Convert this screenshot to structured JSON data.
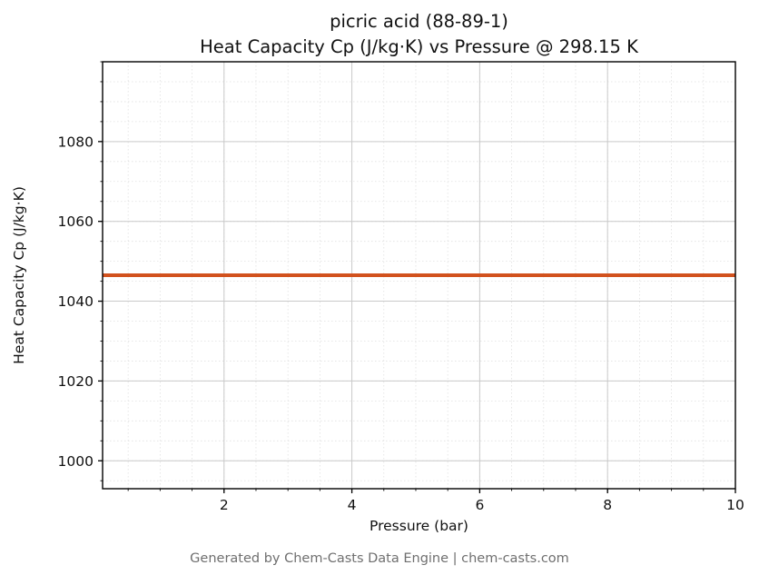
{
  "chart": {
    "title_lines": [
      "picric acid (88-89-1)",
      "Heat Capacity Cp (J/kg·K) vs Pressure @ 298.15 K"
    ],
    "footer": "Generated by Chem-Casts Data Engine | chem-casts.com"
  },
  "chart_data": {
    "type": "line",
    "title": "picric acid (88-89-1)\nHeat Capacity Cp (J/kg·K) vs Pressure @ 298.15 K",
    "xlabel": "Pressure (bar)",
    "ylabel": "Heat Capacity Cp (J/kg·K)",
    "x": [
      0.1,
      10
    ],
    "series": [
      {
        "name": "Heat Capacity Cp",
        "values": [
          1046.5,
          1046.5
        ],
        "color": "#d2521e",
        "line_width": 4
      }
    ],
    "xlim": [
      0.1,
      10
    ],
    "ylim": [
      993,
      1100
    ],
    "xticks": [
      2,
      4,
      6,
      8,
      10
    ],
    "yticks": [
      1000,
      1020,
      1040,
      1060,
      1080
    ],
    "x_minor_step": 0.5,
    "y_minor_step": 5,
    "grid": true,
    "legend_position": "none",
    "colors": {
      "major_grid": "#c9c9c9",
      "minor_grid": "#e0e0e0",
      "axis": "#000000"
    }
  }
}
